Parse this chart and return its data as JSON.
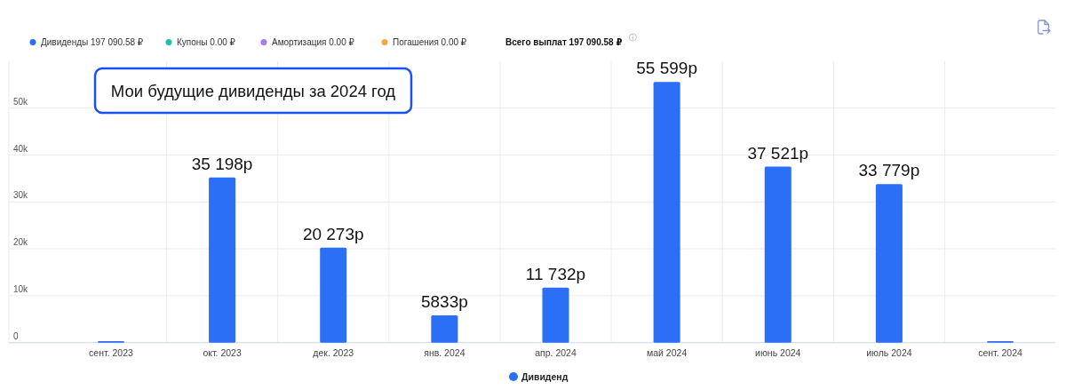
{
  "chart_data": {
    "type": "bar",
    "title": "Мои будущие дивиденды за 2024 год",
    "categories": [
      "сент. 2023",
      "окт. 2023",
      "дек. 2023",
      "янв. 2024",
      "апр. 2024",
      "май 2024",
      "июнь 2024",
      "июль 2024",
      "сент. 2024"
    ],
    "series": [
      {
        "name": "Дивиденд",
        "color": "#2a6ff6",
        "values": [
          300,
          35198,
          20273,
          5833,
          11732,
          55599,
          37521,
          33779,
          300
        ],
        "value_labels": [
          null,
          "35 198р",
          "20 273р",
          "5833р",
          "11 732р",
          "55 599р",
          "37 521р",
          "33 779р",
          null
        ]
      }
    ],
    "ylim": [
      0,
      60000
    ],
    "yticks": [
      0,
      {
        "value": 10000,
        "label": "10k"
      },
      {
        "value": 20000,
        "label": "20k"
      },
      {
        "value": 30000,
        "label": "30k"
      },
      {
        "value": 40000,
        "label": "40k"
      },
      {
        "value": 50000,
        "label": "50k"
      }
    ],
    "grid": true,
    "legend": "bottom",
    "annotations": [
      "Дивиденды 197 090.58 ₽",
      "Купоны 0.00 ₽",
      "Амортизация 0.00 ₽",
      "Погашения 0.00 ₽",
      "Всего выплат 197 090.58 ₽"
    ]
  }
}
